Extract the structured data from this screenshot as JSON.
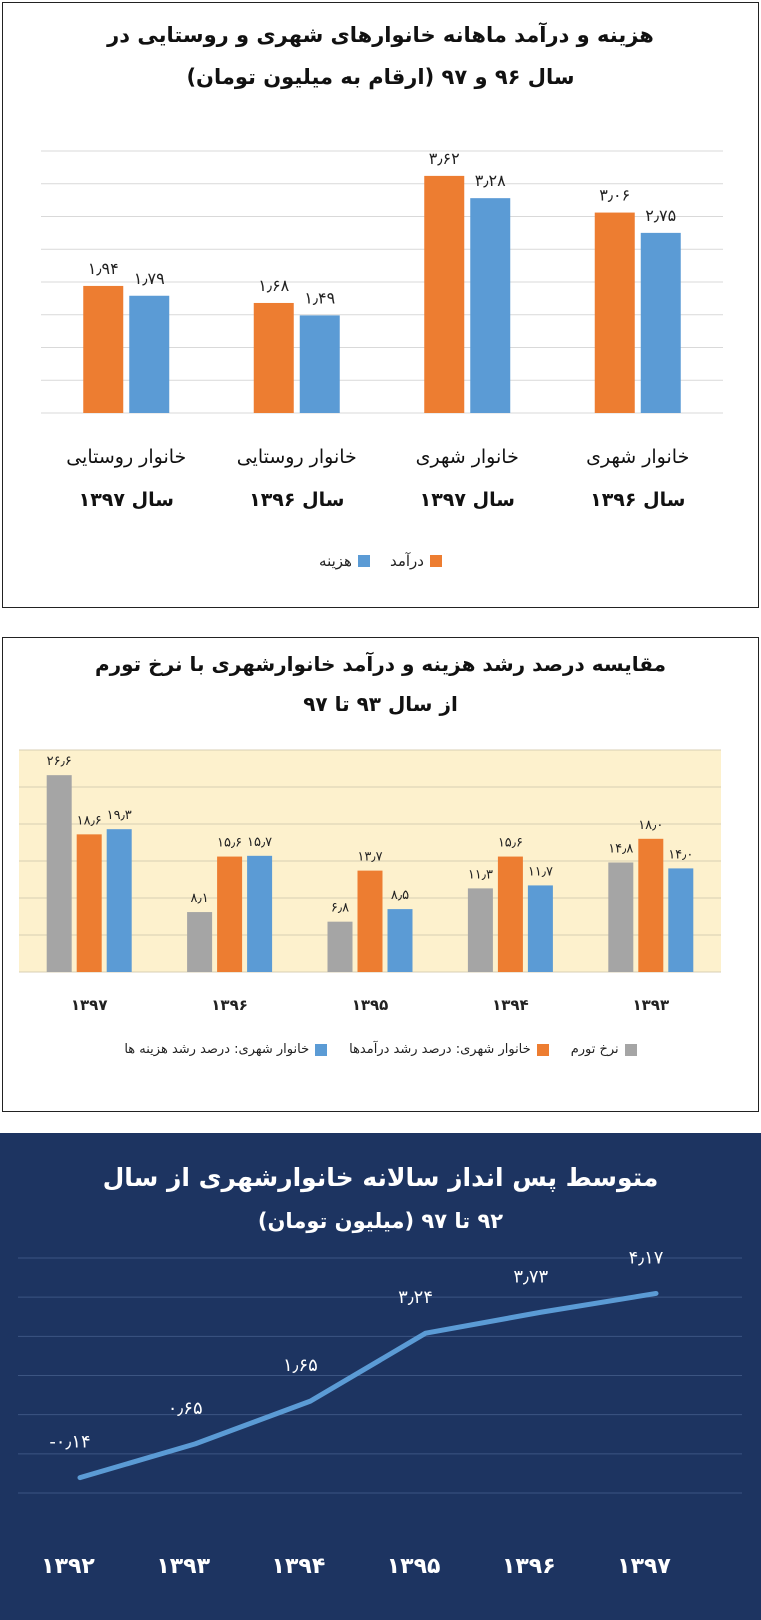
{
  "colors": {
    "income": "#ed7d31",
    "expense": "#5b9bd5",
    "inflation": "#a5a5a5",
    "panel2_bg": "#fdf1cd",
    "panel3_bg": "#1d3461",
    "line": "#5b9bd5"
  },
  "chart_data": [
    {
      "type": "bar",
      "title_line1": "هزینه و درآمد ماهانه خانوارهای شهری و روستایی در",
      "title_line2": "سال ۹۶ و ۹۷ (ارقام به میلیون تومان)",
      "categories": [
        {
          "line1": "خانوار شهری",
          "line2": "سال ۱۳۹۶"
        },
        {
          "line1": "خانوار شهری",
          "line2": "سال ۱۳۹۷"
        },
        {
          "line1": "خانوار روستایی",
          "line2": "سال ۱۳۹۶"
        },
        {
          "line1": "خانوار روستایی",
          "line2": "سال ۱۳۹۷"
        }
      ],
      "series": [
        {
          "name": "درآمد",
          "color": "#ed7d31",
          "values": [
            3.06,
            3.62,
            1.68,
            1.94
          ],
          "labels": [
            "۳٫۰۶",
            "۳٫۶۲",
            "۱٫۶۸",
            "۱٫۹۴"
          ]
        },
        {
          "name": "هزینه",
          "color": "#5b9bd5",
          "values": [
            2.75,
            3.28,
            1.49,
            1.79
          ],
          "labels": [
            "۲٫۷۵",
            "۳٫۲۸",
            "۱٫۴۹",
            "۱٫۷۹"
          ]
        }
      ],
      "ylim": [
        0,
        4
      ],
      "grid": true,
      "legend": "bottom"
    },
    {
      "type": "bar",
      "title_line1": "مقایسه درصد رشد هزینه و درآمد خانوارشهری با نرخ تورم",
      "title_line2": "از سال ۹۳ تا ۹۷",
      "categories": [
        "۱۳۹۳",
        "۱۳۹۴",
        "۱۳۹۵",
        "۱۳۹۶",
        "۱۳۹۷"
      ],
      "series": [
        {
          "name": "نرخ تورم",
          "color": "#a5a5a5",
          "values": [
            14.8,
            11.3,
            6.8,
            8.1,
            26.6
          ],
          "labels": [
            "۱۴٫۸",
            "۱۱٫۳",
            "۶٫۸",
            "۸٫۱",
            "۲۶٫۶"
          ]
        },
        {
          "name": "خانوار شهری: درصد رشد درآمدها",
          "color": "#ed7d31",
          "values": [
            18.0,
            15.6,
            13.7,
            15.6,
            18.6
          ],
          "labels": [
            "۱۸٫۰",
            "۱۵٫۶",
            "۱۳٫۷",
            "۱۵٫۶",
            "۱۸٫۶"
          ]
        },
        {
          "name": "خانوار شهری: درصد رشد هزینه ها",
          "color": "#5b9bd5",
          "values": [
            14.0,
            11.7,
            8.5,
            15.7,
            19.3
          ],
          "labels": [
            "۱۴٫۰",
            "۱۱٫۷",
            "۸٫۵",
            "۱۵٫۷",
            "۱۹٫۳"
          ]
        }
      ],
      "ylim": [
        0,
        30
      ],
      "grid": true,
      "legend": "bottom"
    },
    {
      "type": "line",
      "title_line1": "متوسط پس انداز سالانه خانوارشهری از سال",
      "title_line2": "۹۲ تا ۹۷ (میلیون تومان)",
      "categories": [
        "۱۳۹۲",
        "۱۳۹۳",
        "۱۳۹۴",
        "۱۳۹۵",
        "۱۳۹۶",
        "۱۳۹۷"
      ],
      "values": [
        -0.14,
        0.65,
        1.65,
        3.24,
        3.73,
        4.17
      ],
      "labels": [
        "-۰٫۱۴",
        "۰٫۶۵",
        "۱٫۶۵",
        "۳٫۲۴",
        "۳٫۷۳",
        "۴٫۱۷"
      ],
      "ylim": [
        -0.5,
        5
      ],
      "grid": true
    }
  ]
}
